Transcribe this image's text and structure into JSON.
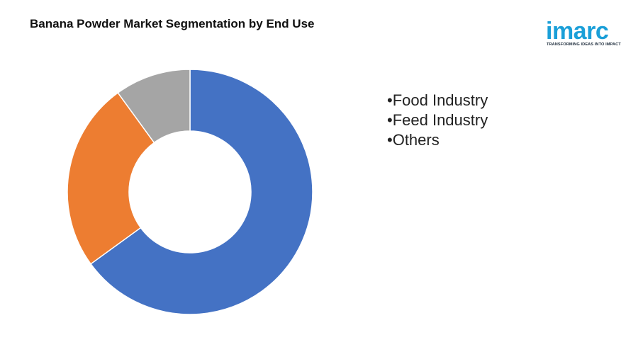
{
  "title": "Banana Powder Market Segmentation by End Use",
  "logo": {
    "wordmark": "imarc",
    "tagline": "TRANSFORMING IDEAS INTO IMPACT",
    "color": "#1a9fd8"
  },
  "chart_data": {
    "type": "pie",
    "variant": "donut",
    "title": "Banana Powder Market Segmentation by End Use",
    "categories": [
      "Food Industry",
      "Feed Industry",
      "Others"
    ],
    "values": [
      65,
      25,
      10
    ],
    "colors": [
      "#4472c4",
      "#ed7d31",
      "#a5a5a5"
    ],
    "legend_position": "right",
    "legend_items": [
      "•Food Industry",
      "•Feed Industry",
      "•Others"
    ]
  }
}
